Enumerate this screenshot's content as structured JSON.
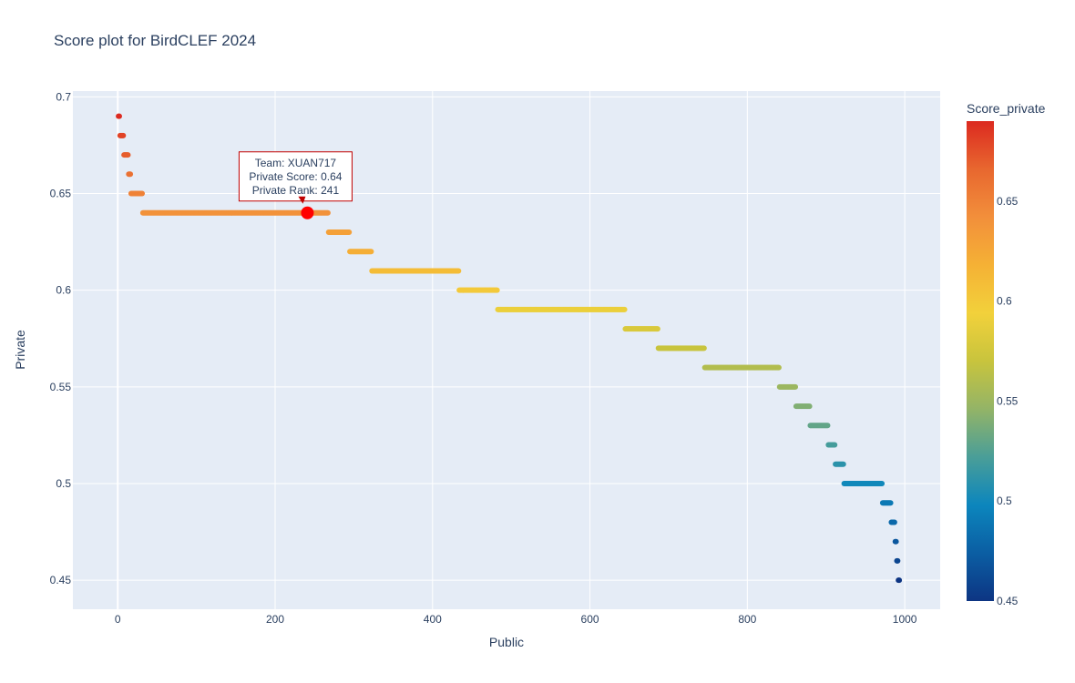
{
  "chart_data": {
    "type": "scatter",
    "title": "Score plot for BirdCLEF 2024",
    "xlabel": "Public",
    "ylabel": "Private",
    "xlim": [
      -57,
      1045
    ],
    "ylim": [
      0.435,
      0.703
    ],
    "xticks": [
      0,
      200,
      400,
      600,
      800,
      1000
    ],
    "yticks": [
      0.45,
      0.5,
      0.55,
      0.6,
      0.65,
      0.7
    ],
    "ytick_labels": [
      "0.45",
      "0.5",
      "0.55",
      "0.6",
      "0.65",
      "0.7"
    ],
    "grid": true,
    "colorbar": {
      "title": "Score_private",
      "min": 0.45,
      "max": 0.69,
      "ticks": [
        0.45,
        0.5,
        0.55,
        0.6,
        0.65
      ],
      "colorscale": [
        "#0d3583",
        "#0b5ea3",
        "#0c86bd",
        "#4a9e98",
        "#93b467",
        "#c8c43d",
        "#f2d13b",
        "#f5b135",
        "#f28f3b",
        "#e8672f",
        "#dc2a20"
      ]
    },
    "segments": [
      {
        "y": 0.69,
        "x_start": 1,
        "x_end": 2
      },
      {
        "y": 0.68,
        "x_start": 3,
        "x_end": 7
      },
      {
        "y": 0.67,
        "x_start": 8,
        "x_end": 13
      },
      {
        "y": 0.66,
        "x_start": 14,
        "x_end": 16
      },
      {
        "y": 0.65,
        "x_start": 17,
        "x_end": 31
      },
      {
        "y": 0.64,
        "x_start": 32,
        "x_end": 267
      },
      {
        "y": 0.63,
        "x_start": 268,
        "x_end": 294
      },
      {
        "y": 0.62,
        "x_start": 295,
        "x_end": 322
      },
      {
        "y": 0.61,
        "x_start": 323,
        "x_end": 433
      },
      {
        "y": 0.6,
        "x_start": 434,
        "x_end": 482
      },
      {
        "y": 0.59,
        "x_start": 483,
        "x_end": 644
      },
      {
        "y": 0.58,
        "x_start": 645,
        "x_end": 686
      },
      {
        "y": 0.57,
        "x_start": 687,
        "x_end": 745
      },
      {
        "y": 0.56,
        "x_start": 746,
        "x_end": 840
      },
      {
        "y": 0.55,
        "x_start": 841,
        "x_end": 861
      },
      {
        "y": 0.54,
        "x_start": 862,
        "x_end": 879
      },
      {
        "y": 0.53,
        "x_start": 880,
        "x_end": 902
      },
      {
        "y": 0.52,
        "x_start": 903,
        "x_end": 911
      },
      {
        "y": 0.51,
        "x_start": 912,
        "x_end": 922
      },
      {
        "y": 0.5,
        "x_start": 923,
        "x_end": 971
      },
      {
        "y": 0.49,
        "x_start": 972,
        "x_end": 982
      },
      {
        "y": 0.48,
        "x_start": 983,
        "x_end": 987
      },
      {
        "y": 0.47,
        "x_start": 988,
        "x_end": 989
      },
      {
        "y": 0.46,
        "x_start": 990,
        "x_end": 991
      },
      {
        "y": 0.45,
        "x_start": 992,
        "x_end": 993
      }
    ],
    "highlight": {
      "x": 241,
      "y": 0.64,
      "color": "#ff0000",
      "label_lines": [
        "Team: XUAN717",
        "Private Score: 0.64",
        "Private Rank: 241"
      ]
    }
  }
}
